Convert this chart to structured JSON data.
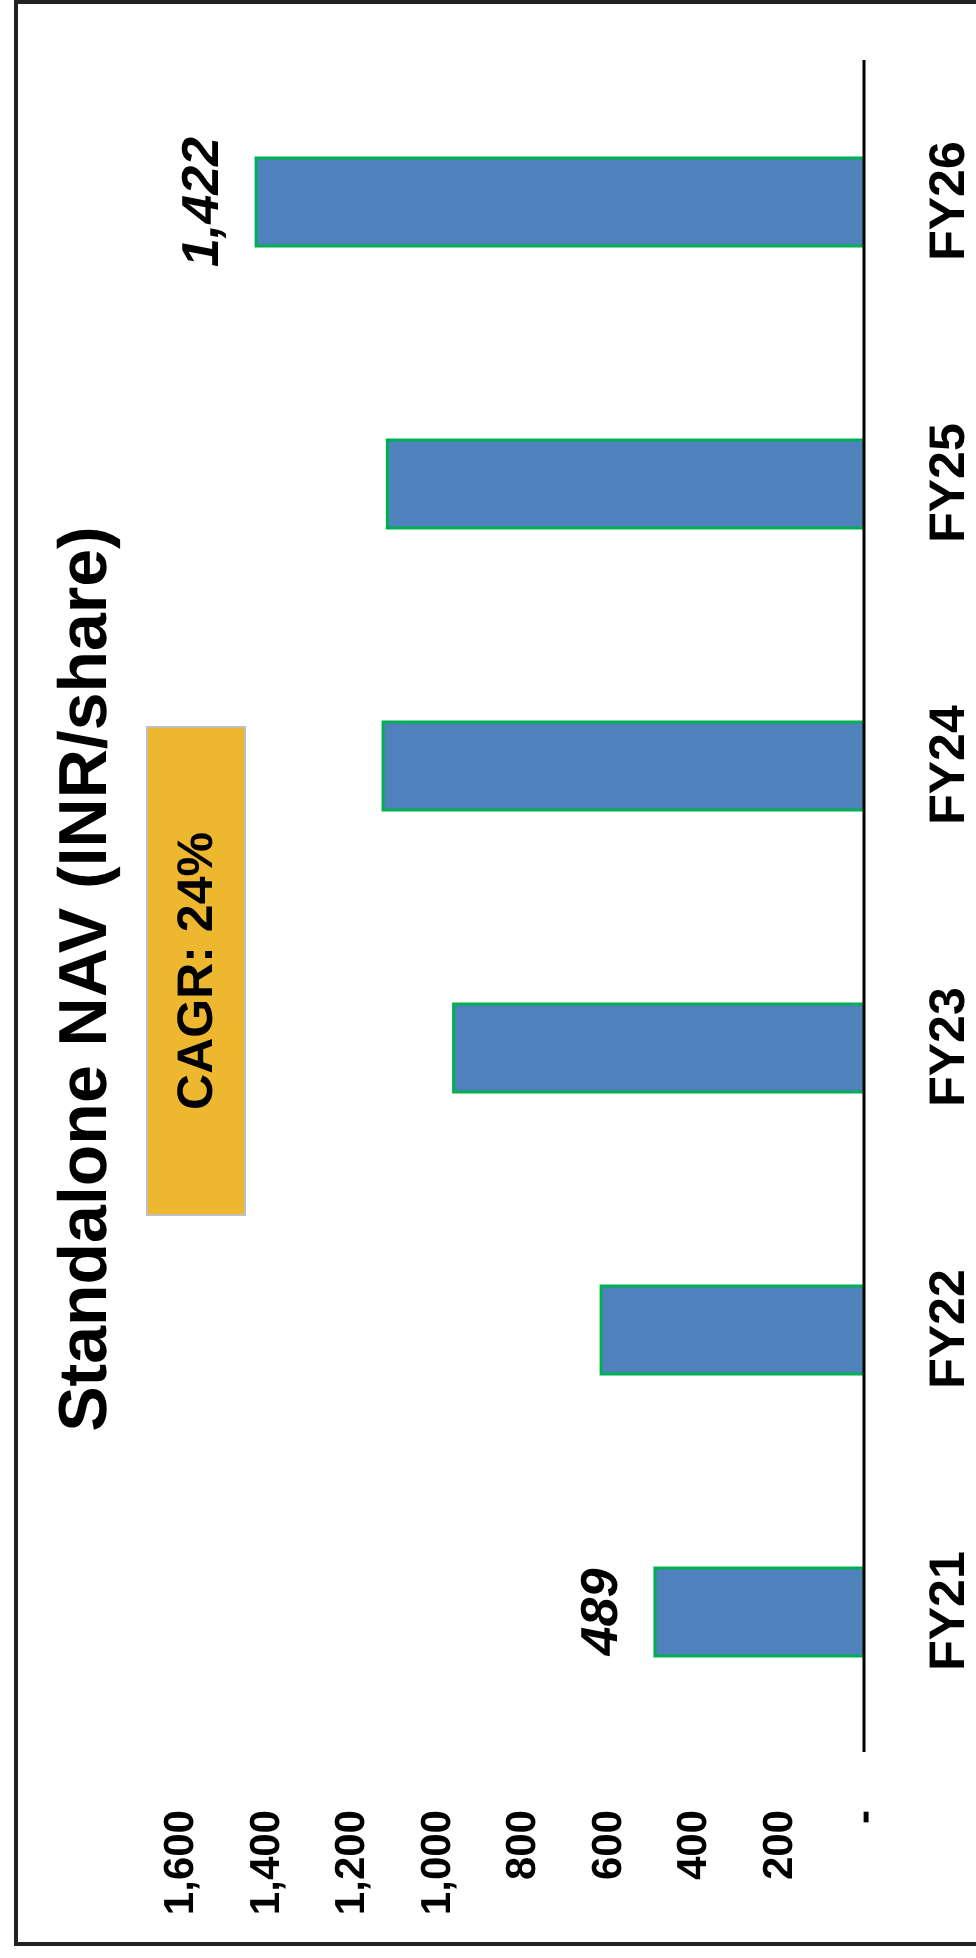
{
  "chart_data": {
    "type": "bar",
    "orientation": "horizontal",
    "title": "Standalone NAV (INR/share)",
    "categories": [
      "FY26",
      "FY25",
      "FY24",
      "FY23",
      "FY22",
      "FY21"
    ],
    "values": [
      1422,
      1115,
      1125,
      960,
      615,
      489
    ],
    "color": "#4f81bd",
    "value_labels": [
      "1,422",
      null,
      null,
      null,
      null,
      "489"
    ],
    "xlim": [
      1600,
      0
    ],
    "xticks": [
      {
        "value": 1600,
        "label": "1,600"
      },
      {
        "value": 1400,
        "label": "1,400"
      },
      {
        "value": 1200,
        "label": "1,200"
      },
      {
        "value": 1000,
        "label": "1,000"
      },
      800,
      600,
      400,
      200,
      {
        "value": 0,
        "label": "-"
      }
    ],
    "annotations": [
      "CAGR: 24%"
    ]
  }
}
